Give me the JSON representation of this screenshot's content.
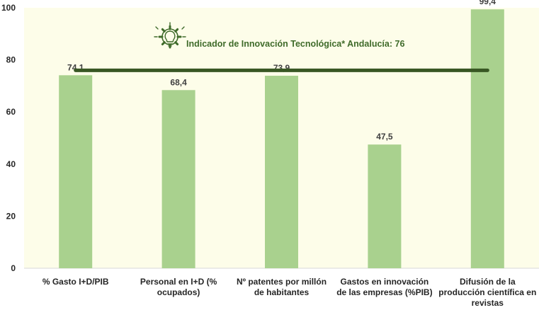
{
  "chart_data": {
    "type": "bar",
    "categories": [
      [
        "% Gasto I+D/PIB"
      ],
      [
        "Personal en I+D (%",
        "ocupados)"
      ],
      [
        "Nº patentes por millón",
        "de habitantes"
      ],
      [
        "Gastos en innovación",
        "de las empresas (%PIB)"
      ],
      [
        "Difusión de la",
        "producción científica en",
        "revistas"
      ]
    ],
    "values": [
      74.1,
      68.4,
      73.9,
      47.5,
      99.4
    ],
    "value_labels": [
      "74,1",
      "68,4",
      "73,9",
      "47,5",
      "99,4"
    ],
    "ylim": [
      0,
      100
    ],
    "yticks": [
      0,
      20,
      40,
      60,
      80,
      100
    ],
    "grid": false,
    "reference_line": {
      "value": 76
    },
    "annotation": "Indicador de Innovación Tecnológica* Andalucía: 76",
    "annotation_icon": "gear-lightbulb-icon",
    "colors": {
      "bar": "#a9d18e",
      "plot_background": "#fdfde9",
      "reference_line": "#385723",
      "annotation_text": "#3f6b2a"
    }
  }
}
